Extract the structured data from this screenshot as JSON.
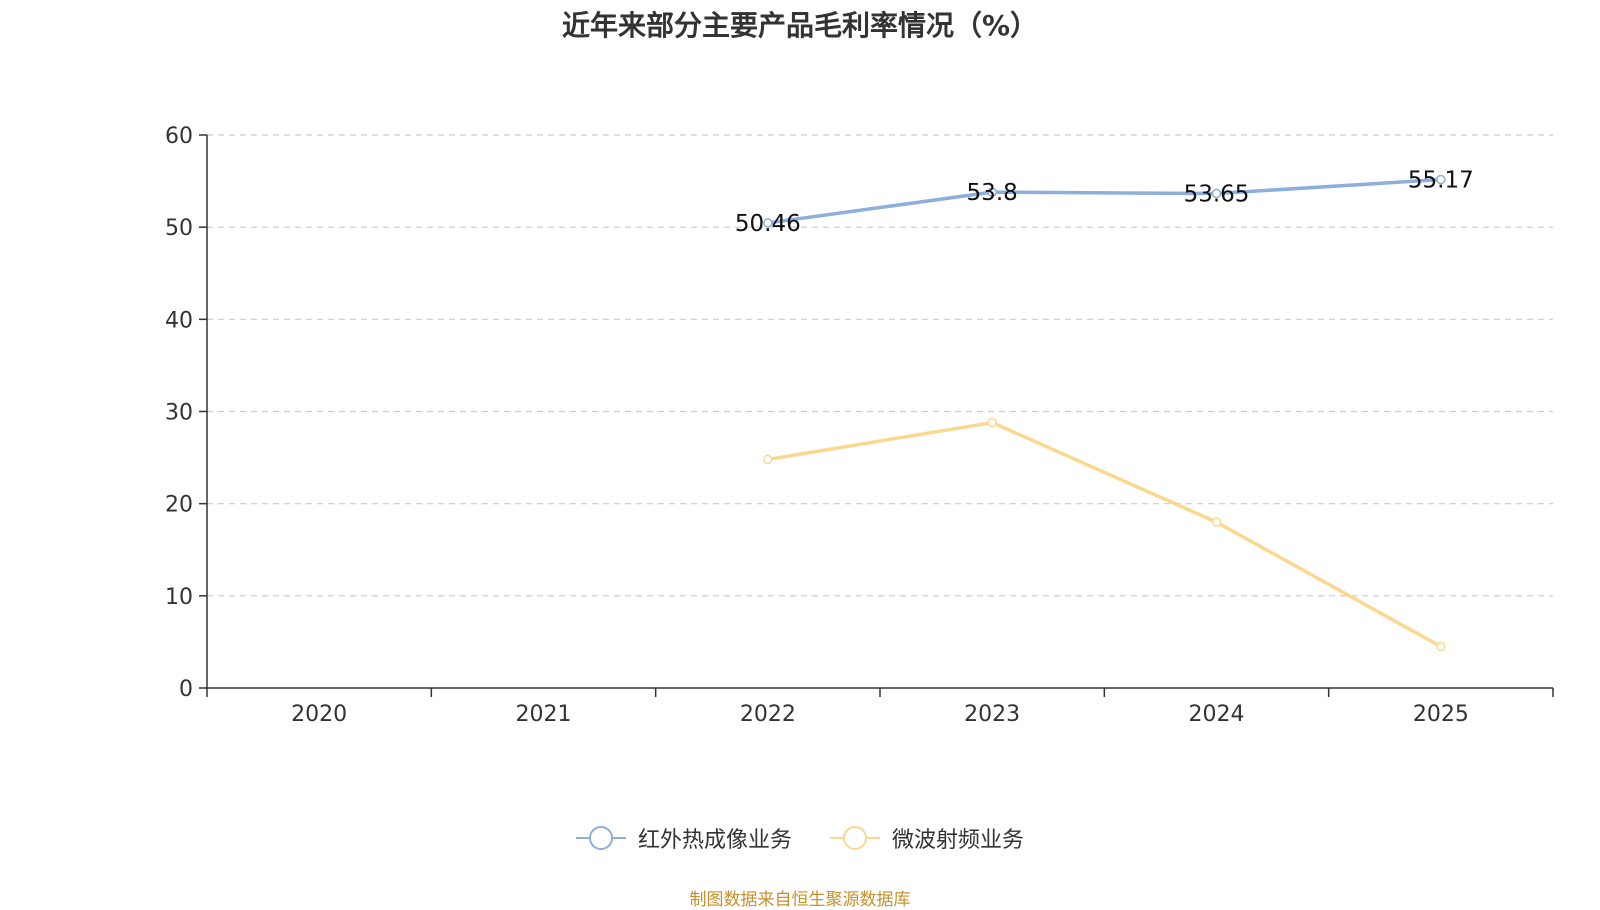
{
  "chart_data": {
    "type": "line",
    "title": "近年来部分主要产品毛利率情况（%）",
    "categories": [
      "2020",
      "2021",
      "2022",
      "2023",
      "2024",
      "2025"
    ],
    "ylim": [
      0,
      60
    ],
    "yticks": [
      0,
      10,
      20,
      30,
      40,
      50,
      60
    ],
    "grid": true,
    "legend_position": "bottom",
    "series": [
      {
        "name": "红外热成像业务",
        "color": "#8eaedb",
        "values": [
          null,
          null,
          50.46,
          53.8,
          53.65,
          55.17
        ],
        "labels": [
          "",
          "",
          "50.46",
          "53.8",
          "53.65",
          "55.17"
        ]
      },
      {
        "name": "微波射频业务",
        "color": "#fad98f",
        "values": [
          null,
          null,
          24.8,
          28.8,
          18.0,
          4.5
        ],
        "labels": []
      }
    ]
  },
  "source": "制图数据来自恒生聚源数据库"
}
